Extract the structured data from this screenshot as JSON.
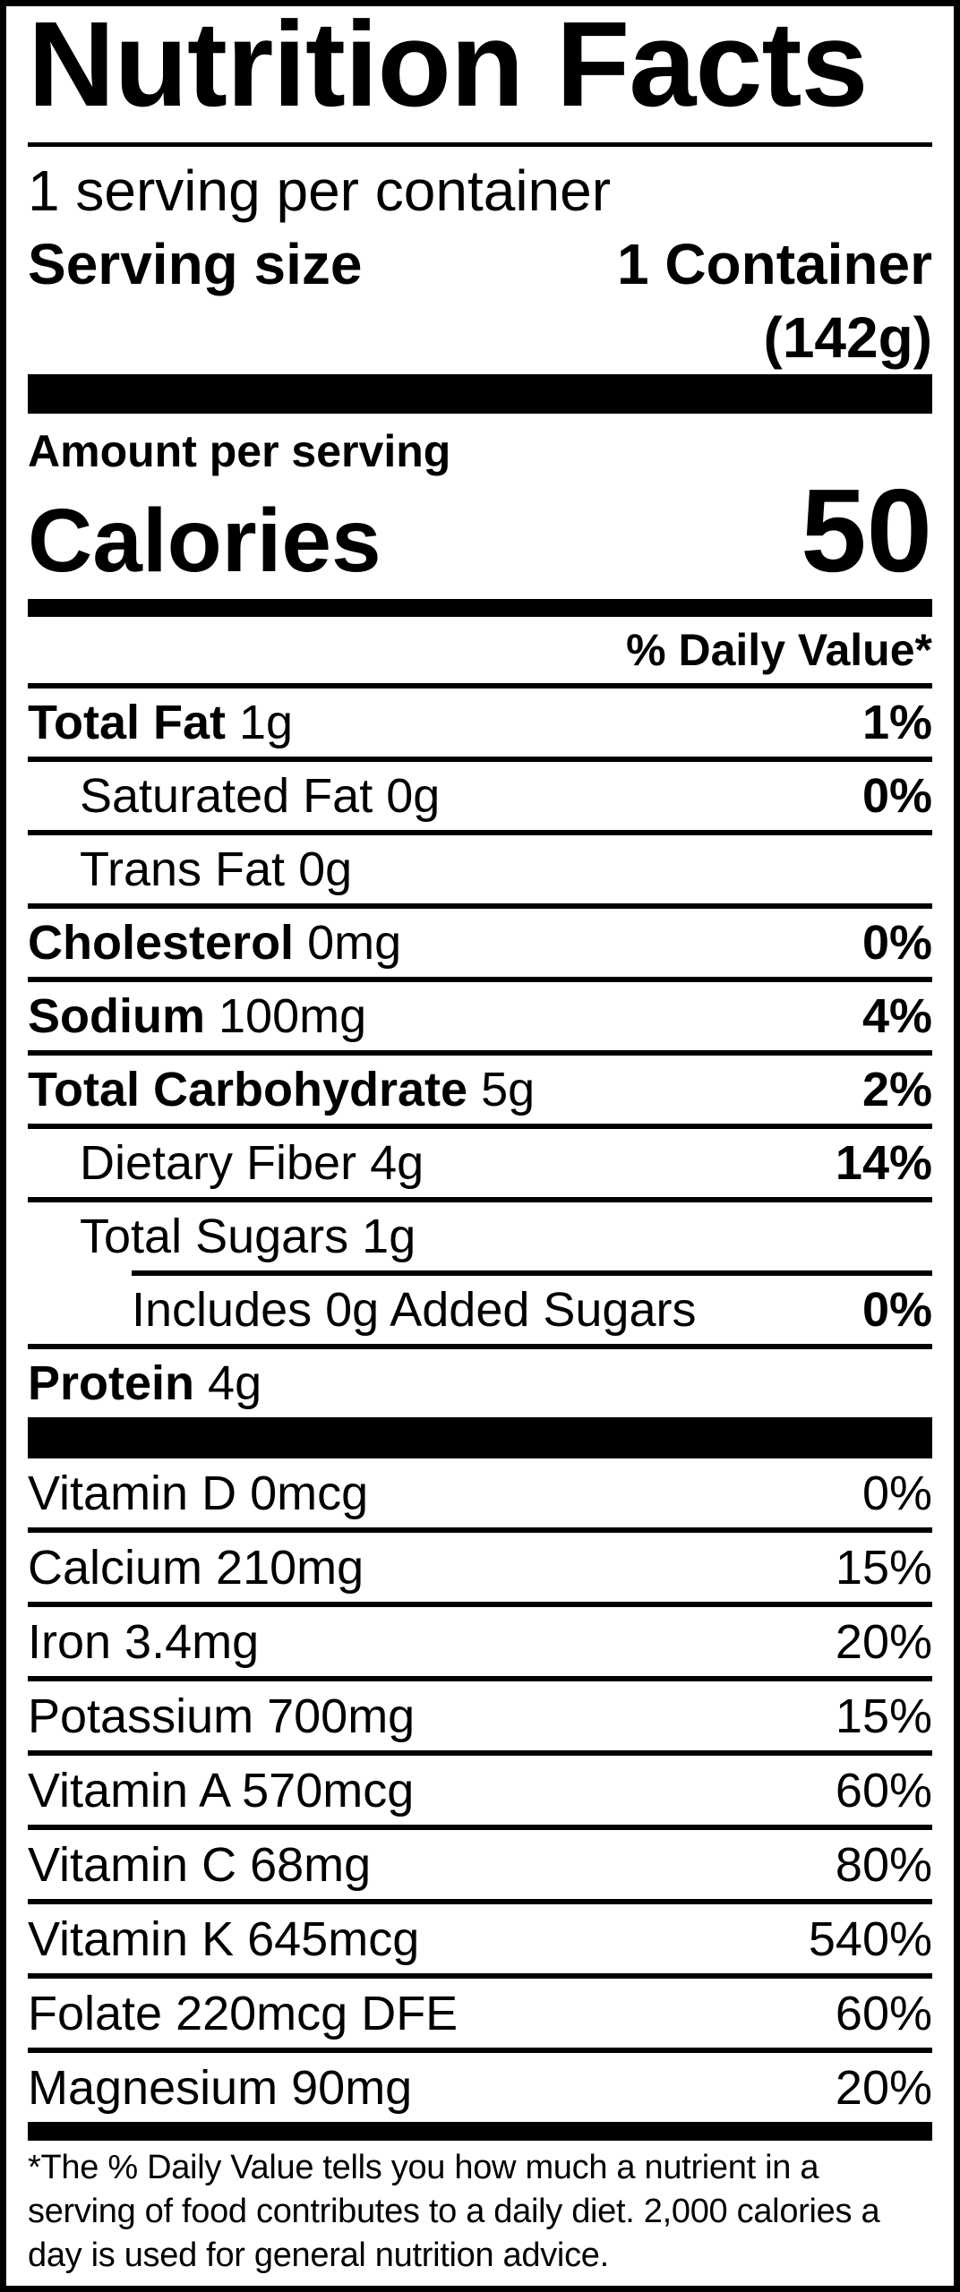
{
  "colors": {
    "ink": "#000000",
    "paper": "#ffffff"
  },
  "label": {
    "title": "Nutrition Facts",
    "servings_per_container": "1 serving per container",
    "serving_size_label": "Serving size",
    "serving_size_value": "1 Container",
    "serving_size_weight": "(142g)",
    "amount_per_serving": "Amount per serving",
    "calories_label": "Calories",
    "calories_value": "50",
    "daily_value_header": "% Daily Value*",
    "nutrients": [
      {
        "name": "Total Fat",
        "amount": "1g",
        "pct": "1%",
        "indent": 0,
        "name_bold": true,
        "pct_bold": true,
        "sep": "full"
      },
      {
        "name": "Saturated Fat",
        "amount": "0g",
        "pct": "0%",
        "indent": 1,
        "name_bold": false,
        "pct_bold": true,
        "sep": "full"
      },
      {
        "name": "Trans Fat",
        "amount": "0g",
        "pct": "",
        "indent": 1,
        "name_bold": false,
        "pct_bold": false,
        "sep": "full"
      },
      {
        "name": "Cholesterol",
        "amount": "0mg",
        "pct": "0%",
        "indent": 0,
        "name_bold": true,
        "pct_bold": true,
        "sep": "full"
      },
      {
        "name": "Sodium",
        "amount": "100mg",
        "pct": "4%",
        "indent": 0,
        "name_bold": true,
        "pct_bold": true,
        "sep": "full"
      },
      {
        "name": "Total Carbohydrate",
        "amount": "5g",
        "pct": "2%",
        "indent": 0,
        "name_bold": true,
        "pct_bold": true,
        "sep": "full"
      },
      {
        "name": "Dietary Fiber",
        "amount": "4g",
        "pct": "14%",
        "indent": 1,
        "name_bold": false,
        "pct_bold": true,
        "sep": "full"
      },
      {
        "name": "Total Sugars",
        "amount": "1g",
        "pct": "",
        "indent": 1,
        "name_bold": false,
        "pct_bold": false,
        "sep": "indent"
      },
      {
        "name": "Includes",
        "amount": "0g Added Sugars",
        "pct": "0%",
        "indent": 2,
        "name_bold": false,
        "pct_bold": true,
        "sep": "full"
      },
      {
        "name": "Protein",
        "amount": "4g",
        "pct": "",
        "indent": 0,
        "name_bold": true,
        "pct_bold": false,
        "sep": "none"
      }
    ],
    "vitamins": [
      {
        "text": "Vitamin D 0mcg",
        "pct": "0%",
        "sep": "full"
      },
      {
        "text": "Calcium 210mg",
        "pct": "15%",
        "sep": "full"
      },
      {
        "text": "Iron 3.4mg",
        "pct": "20%",
        "sep": "full"
      },
      {
        "text": "Potassium 700mg",
        "pct": "15%",
        "sep": "full"
      },
      {
        "text": "Vitamin A 570mcg",
        "pct": "60%",
        "sep": "full"
      },
      {
        "text": "Vitamin C 68mg",
        "pct": "80%",
        "sep": "full"
      },
      {
        "text": "Vitamin K 645mcg",
        "pct": "540%",
        "sep": "full"
      },
      {
        "text": "Folate 220mcg DFE",
        "pct": "60%",
        "sep": "full"
      },
      {
        "text": "Magnesium 90mg",
        "pct": "20%",
        "sep": "none"
      }
    ],
    "footnote_lines": [
      "*The % Daily Value tells you how much a nutrient in a",
      "serving of food contributes to a daily diet. 2,000 calories a",
      "day is used for general nutrition advice."
    ]
  }
}
